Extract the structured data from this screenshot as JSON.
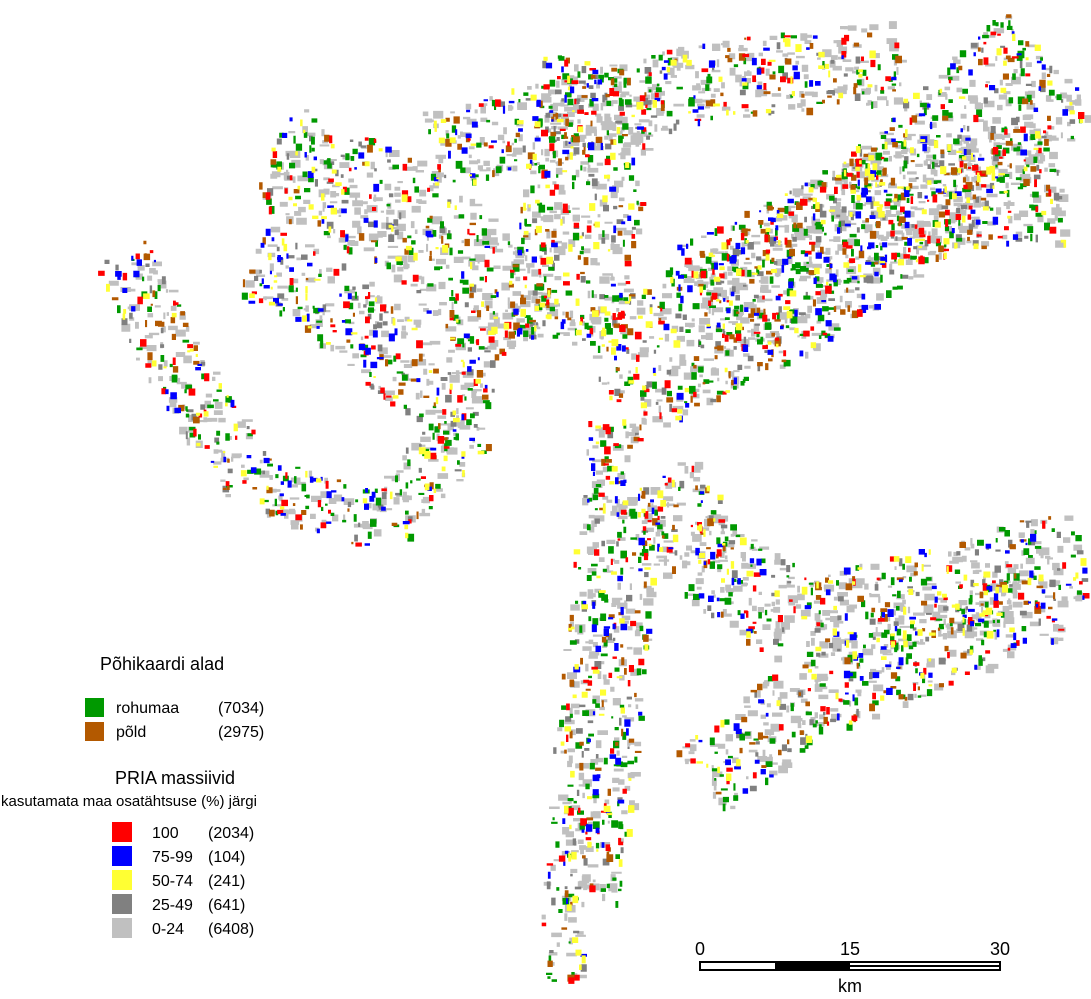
{
  "legend": {
    "base_title": "Põhikaardi alad",
    "base_items": [
      {
        "label": "rohumaa",
        "count": "(7034)",
        "color": "#009900"
      },
      {
        "label": "põld",
        "count": "(2975)",
        "color": "#b35900"
      }
    ],
    "pria_title": "PRIA  massiivid",
    "pria_subtitle": "kasutamata maa osatähtsuse (%) järgi",
    "pria_items": [
      {
        "label": "100",
        "count": "(2034)",
        "color": "#ff0000"
      },
      {
        "label": "75-99",
        "count": "(104)",
        "color": "#0000ff"
      },
      {
        "label": "50-74",
        "count": "(241)",
        "color": "#ffff33"
      },
      {
        "label": "25-49",
        "count": "(641)",
        "color": "#808080"
      },
      {
        "label": "0-24",
        "count": "(6408)",
        "color": "#c0c0c0"
      }
    ]
  },
  "scale_bar": {
    "ticks": [
      0,
      15,
      30
    ],
    "unit": "km"
  }
}
